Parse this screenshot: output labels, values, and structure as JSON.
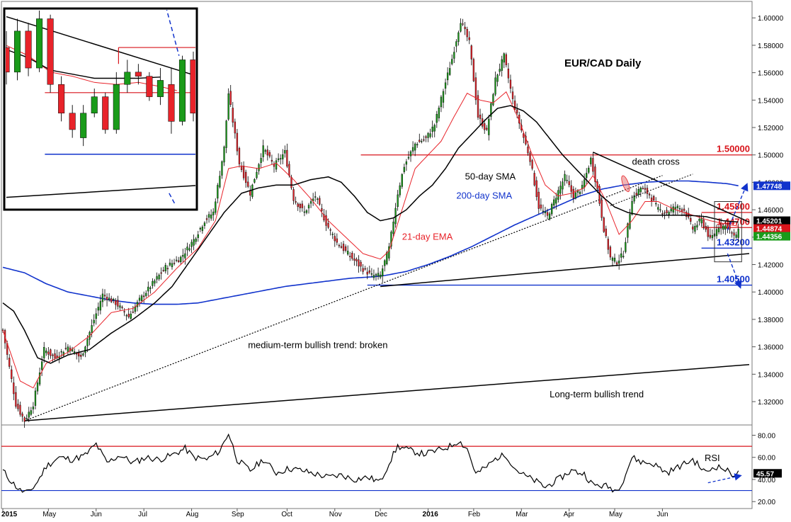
{
  "chart_data": {
    "type": "line",
    "title": "EUR/CAD Daily",
    "colors": {
      "bull": "#1a9b1a",
      "bear": "#e8232a",
      "ema": "#e8232a",
      "sma50": "#000000",
      "sma200": "#1133cc",
      "rsi": "#000000",
      "level_red": "#d8141b",
      "level_blue": "#1133cc",
      "badge_green": "#1a9b1a"
    },
    "x_axis": {
      "labels": [
        "2015",
        "May",
        "Jun",
        "Jul",
        "Aug",
        "Sep",
        "Oct",
        "Nov",
        "Dec",
        "2016",
        "Feb",
        "Mar",
        "Apr",
        "May",
        "Jun"
      ],
      "positions": [
        0,
        21,
        43,
        65,
        87,
        108,
        131,
        153,
        174,
        196,
        217,
        239,
        261,
        282,
        304
      ],
      "range": [
        0,
        344
      ]
    },
    "y_axis": {
      "ticks": [
        "1.60000",
        "1.58000",
        "1.56000",
        "1.54000",
        "1.52000",
        "1.50000",
        "1.48000",
        "1.46000",
        "1.44000",
        "1.42000",
        "1.40000",
        "1.38000",
        "1.36000",
        "1.34000",
        "1.32000"
      ],
      "tick_values": [
        1.6,
        1.58,
        1.56,
        1.54,
        1.52,
        1.5,
        1.48,
        1.46,
        1.44,
        1.42,
        1.4,
        1.38,
        1.36,
        1.34,
        1.32
      ],
      "range": [
        1.304,
        1.612
      ]
    },
    "price_anchors": [
      [
        0,
        1.372
      ],
      [
        6,
        1.318
      ],
      [
        10,
        1.306
      ],
      [
        14,
        1.318
      ],
      [
        19,
        1.358
      ],
      [
        24,
        1.352
      ],
      [
        30,
        1.36
      ],
      [
        36,
        1.352
      ],
      [
        41,
        1.375
      ],
      [
        46,
        1.398
      ],
      [
        52,
        1.392
      ],
      [
        58,
        1.382
      ],
      [
        63,
        1.394
      ],
      [
        68,
        1.404
      ],
      [
        75,
        1.418
      ],
      [
        82,
        1.425
      ],
      [
        88,
        1.438
      ],
      [
        93,
        1.452
      ],
      [
        97,
        1.458
      ],
      [
        102,
        1.505
      ],
      [
        104,
        1.545
      ],
      [
        109,
        1.494
      ],
      [
        114,
        1.472
      ],
      [
        120,
        1.505
      ],
      [
        125,
        1.492
      ],
      [
        130,
        1.502
      ],
      [
        134,
        1.468
      ],
      [
        139,
        1.458
      ],
      [
        144,
        1.47
      ],
      [
        149,
        1.45
      ],
      [
        154,
        1.436
      ],
      [
        159,
        1.428
      ],
      [
        165,
        1.418
      ],
      [
        170,
        1.412
      ],
      [
        174,
        1.412
      ],
      [
        178,
        1.432
      ],
      [
        182,
        1.472
      ],
      [
        185,
        1.492
      ],
      [
        190,
        1.508
      ],
      [
        195,
        1.512
      ],
      [
        199,
        1.522
      ],
      [
        203,
        1.547
      ],
      [
        207,
        1.57
      ],
      [
        211,
        1.598
      ],
      [
        215,
        1.582
      ],
      [
        219,
        1.528
      ],
      [
        223,
        1.517
      ],
      [
        227,
        1.555
      ],
      [
        231,
        1.572
      ],
      [
        235,
        1.54
      ],
      [
        239,
        1.518
      ],
      [
        243,
        1.497
      ],
      [
        247,
        1.462
      ],
      [
        251,
        1.455
      ],
      [
        255,
        1.47
      ],
      [
        259,
        1.484
      ],
      [
        263,
        1.47
      ],
      [
        267,
        1.476
      ],
      [
        271,
        1.497
      ],
      [
        274,
        1.475
      ],
      [
        277,
        1.446
      ],
      [
        280,
        1.425
      ],
      [
        283,
        1.422
      ],
      [
        286,
        1.428
      ],
      [
        290,
        1.468
      ],
      [
        294,
        1.476
      ],
      [
        298,
        1.471
      ],
      [
        302,
        1.46
      ],
      [
        306,
        1.458
      ],
      [
        310,
        1.462
      ],
      [
        314,
        1.46
      ],
      [
        318,
        1.446
      ],
      [
        322,
        1.453
      ],
      [
        326,
        1.438
      ],
      [
        330,
        1.448
      ],
      [
        334,
        1.448
      ],
      [
        337,
        1.44
      ],
      [
        339,
        1.444
      ]
    ],
    "ema21_anchors": [
      [
        0,
        1.372
      ],
      [
        8,
        1.335
      ],
      [
        14,
        1.33
      ],
      [
        20,
        1.348
      ],
      [
        30,
        1.356
      ],
      [
        40,
        1.368
      ],
      [
        50,
        1.385
      ],
      [
        60,
        1.388
      ],
      [
        70,
        1.4
      ],
      [
        80,
        1.417
      ],
      [
        90,
        1.432
      ],
      [
        98,
        1.452
      ],
      [
        104,
        1.49
      ],
      [
        110,
        1.492
      ],
      [
        118,
        1.49
      ],
      [
        126,
        1.494
      ],
      [
        134,
        1.482
      ],
      [
        142,
        1.468
      ],
      [
        150,
        1.452
      ],
      [
        158,
        1.44
      ],
      [
        166,
        1.428
      ],
      [
        174,
        1.424
      ],
      [
        178,
        1.43
      ],
      [
        184,
        1.46
      ],
      [
        190,
        1.49
      ],
      [
        196,
        1.5
      ],
      [
        202,
        1.51
      ],
      [
        208,
        1.528
      ],
      [
        214,
        1.545
      ],
      [
        220,
        1.54
      ],
      [
        226,
        1.538
      ],
      [
        232,
        1.546
      ],
      [
        238,
        1.525
      ],
      [
        244,
        1.5
      ],
      [
        250,
        1.478
      ],
      [
        256,
        1.47
      ],
      [
        262,
        1.472
      ],
      [
        268,
        1.476
      ],
      [
        272,
        1.485
      ],
      [
        278,
        1.466
      ],
      [
        284,
        1.442
      ],
      [
        290,
        1.452
      ],
      [
        296,
        1.466
      ],
      [
        302,
        1.466
      ],
      [
        310,
        1.46
      ],
      [
        318,
        1.456
      ],
      [
        326,
        1.452
      ],
      [
        332,
        1.45
      ],
      [
        339,
        1.448
      ]
    ],
    "sma50_anchors": [
      [
        0,
        1.392
      ],
      [
        5,
        1.386
      ],
      [
        10,
        1.372
      ],
      [
        16,
        1.352
      ],
      [
        22,
        1.348
      ],
      [
        30,
        1.354
      ],
      [
        40,
        1.358
      ],
      [
        50,
        1.37
      ],
      [
        60,
        1.38
      ],
      [
        70,
        1.392
      ],
      [
        78,
        1.404
      ],
      [
        86,
        1.422
      ],
      [
        94,
        1.44
      ],
      [
        102,
        1.458
      ],
      [
        110,
        1.472
      ],
      [
        118,
        1.476
      ],
      [
        126,
        1.478
      ],
      [
        134,
        1.478
      ],
      [
        142,
        1.482
      ],
      [
        150,
        1.484
      ],
      [
        156,
        1.48
      ],
      [
        162,
        1.47
      ],
      [
        168,
        1.458
      ],
      [
        174,
        1.452
      ],
      [
        180,
        1.454
      ],
      [
        186,
        1.46
      ],
      [
        192,
        1.47
      ],
      [
        198,
        1.478
      ],
      [
        204,
        1.49
      ],
      [
        210,
        1.505
      ],
      [
        216,
        1.515
      ],
      [
        222,
        1.525
      ],
      [
        228,
        1.534
      ],
      [
        234,
        1.536
      ],
      [
        240,
        1.532
      ],
      [
        246,
        1.524
      ],
      [
        252,
        1.512
      ],
      [
        258,
        1.5
      ],
      [
        264,
        1.49
      ],
      [
        270,
        1.48
      ],
      [
        276,
        1.47
      ],
      [
        282,
        1.462
      ],
      [
        288,
        1.458
      ],
      [
        294,
        1.456
      ],
      [
        300,
        1.456
      ],
      [
        308,
        1.456
      ],
      [
        316,
        1.456
      ],
      [
        324,
        1.455
      ],
      [
        332,
        1.452
      ],
      [
        339,
        1.451
      ]
    ],
    "sma200_anchors": [
      [
        0,
        1.418
      ],
      [
        10,
        1.414
      ],
      [
        20,
        1.406
      ],
      [
        30,
        1.4
      ],
      [
        40,
        1.397
      ],
      [
        50,
        1.394
      ],
      [
        60,
        1.392
      ],
      [
        70,
        1.391
      ],
      [
        80,
        1.391
      ],
      [
        90,
        1.392
      ],
      [
        100,
        1.395
      ],
      [
        110,
        1.398
      ],
      [
        120,
        1.401
      ],
      [
        130,
        1.404
      ],
      [
        140,
        1.406
      ],
      [
        150,
        1.408
      ],
      [
        160,
        1.41
      ],
      [
        170,
        1.411
      ],
      [
        176,
        1.412
      ],
      [
        186,
        1.415
      ],
      [
        196,
        1.42
      ],
      [
        206,
        1.426
      ],
      [
        216,
        1.433
      ],
      [
        226,
        1.441
      ],
      [
        236,
        1.449
      ],
      [
        246,
        1.456
      ],
      [
        256,
        1.463
      ],
      [
        266,
        1.47
      ],
      [
        276,
        1.475
      ],
      [
        286,
        1.478
      ],
      [
        296,
        1.48
      ],
      [
        306,
        1.481
      ],
      [
        316,
        1.481
      ],
      [
        326,
        1.48
      ],
      [
        334,
        1.479
      ],
      [
        339,
        1.4775
      ]
    ],
    "trendlines": [
      {
        "from": [
          10,
          1.306
        ],
        "to": [
          304,
          1.485
        ],
        "style": "dotted",
        "label": "medium-term bullish trend: broken"
      },
      {
        "from": [
          10,
          1.306
        ],
        "to": [
          344,
          1.347
        ],
        "style": "solid",
        "label": "Long-term bullish trend"
      },
      {
        "from": [
          174,
          1.404
        ],
        "to": [
          344,
          1.428
        ],
        "style": "solid"
      },
      {
        "from": [
          272,
          1.502
        ],
        "to": [
          344,
          1.451
        ],
        "style": "solid"
      }
    ],
    "levels": [
      {
        "value": 1.5,
        "label": "1.50000",
        "color": "red",
        "from_x": 165
      },
      {
        "value": 1.458,
        "label": "1.45800",
        "color": "red",
        "from_x": 322
      },
      {
        "value": 1.447,
        "label": "1.44700",
        "color": "red",
        "from_x": 322
      },
      {
        "value": 1.432,
        "label": "1.43200",
        "color": "blue",
        "from_x": 322
      },
      {
        "value": 1.405,
        "label": "1.40500",
        "color": "blue",
        "from_x": 168
      }
    ],
    "price_badges": [
      {
        "value": 1.47748,
        "text": "1.47748",
        "color": "blue"
      },
      {
        "value": 1.45201,
        "text": "1.45201",
        "color": "black"
      },
      {
        "value": 1.44874,
        "text": "1.44874",
        "color": "red"
      },
      {
        "value": 1.44356,
        "text": "1.44356",
        "color": "green"
      }
    ],
    "annotations": {
      "ema": {
        "text": "21-day EMA",
        "x": 184,
        "y": 1.438
      },
      "sma50": {
        "text": "50-day SMA",
        "x": 213,
        "y": 1.482
      },
      "sma200": {
        "text": "200-day SMA",
        "x": 209,
        "y": 1.468
      },
      "death_cross": {
        "text": "death cross",
        "x": 290,
        "y": 1.493
      },
      "medium_trend": {
        "text": "medium-term bullish trend: broken",
        "x": 113,
        "y": 1.359
      },
      "long_trend": {
        "text": "Long-term bullish trend",
        "x": 252,
        "y": 1.323
      }
    },
    "rsi": {
      "label": "RSI",
      "ticks": [
        "80.00",
        "60.00",
        "40.00",
        "20.00"
      ],
      "tick_values": [
        80,
        60,
        40,
        20
      ],
      "range": [
        15,
        88
      ],
      "overbought": 70,
      "oversold": 30,
      "current": "45.57",
      "anchors": [
        [
          0,
          48
        ],
        [
          4,
          38
        ],
        [
          8,
          30
        ],
        [
          12,
          28
        ],
        [
          16,
          38
        ],
        [
          20,
          52
        ],
        [
          26,
          60
        ],
        [
          32,
          58
        ],
        [
          38,
          62
        ],
        [
          43,
          72
        ],
        [
          48,
          55
        ],
        [
          54,
          62
        ],
        [
          60,
          55
        ],
        [
          66,
          60
        ],
        [
          72,
          58
        ],
        [
          78,
          62
        ],
        [
          84,
          68
        ],
        [
          88,
          60
        ],
        [
          94,
          58
        ],
        [
          100,
          66
        ],
        [
          104,
          82
        ],
        [
          108,
          58
        ],
        [
          114,
          48
        ],
        [
          120,
          58
        ],
        [
          126,
          46
        ],
        [
          132,
          50
        ],
        [
          138,
          48
        ],
        [
          144,
          45
        ],
        [
          150,
          42
        ],
        [
          156,
          44
        ],
        [
          162,
          40
        ],
        [
          168,
          42
        ],
        [
          174,
          38
        ],
        [
          178,
          55
        ],
        [
          182,
          70
        ],
        [
          188,
          66
        ],
        [
          194,
          63
        ],
        [
          200,
          66
        ],
        [
          206,
          70
        ],
        [
          210,
          75
        ],
        [
          214,
          68
        ],
        [
          218,
          45
        ],
        [
          222,
          50
        ],
        [
          228,
          60
        ],
        [
          232,
          62
        ],
        [
          236,
          50
        ],
        [
          240,
          44
        ],
        [
          246,
          38
        ],
        [
          250,
          33
        ],
        [
          256,
          40
        ],
        [
          262,
          48
        ],
        [
          268,
          45
        ],
        [
          272,
          35
        ],
        [
          278,
          34
        ],
        [
          283,
          30
        ],
        [
          286,
          40
        ],
        [
          290,
          60
        ],
        [
          294,
          56
        ],
        [
          300,
          54
        ],
        [
          306,
          46
        ],
        [
          312,
          52
        ],
        [
          318,
          58
        ],
        [
          324,
          46
        ],
        [
          328,
          52
        ],
        [
          332,
          50
        ],
        [
          336,
          45
        ],
        [
          339,
          45.57
        ]
      ]
    },
    "inset": {
      "note": "zoomed view of the latest candles with trendlines and levels"
    }
  }
}
